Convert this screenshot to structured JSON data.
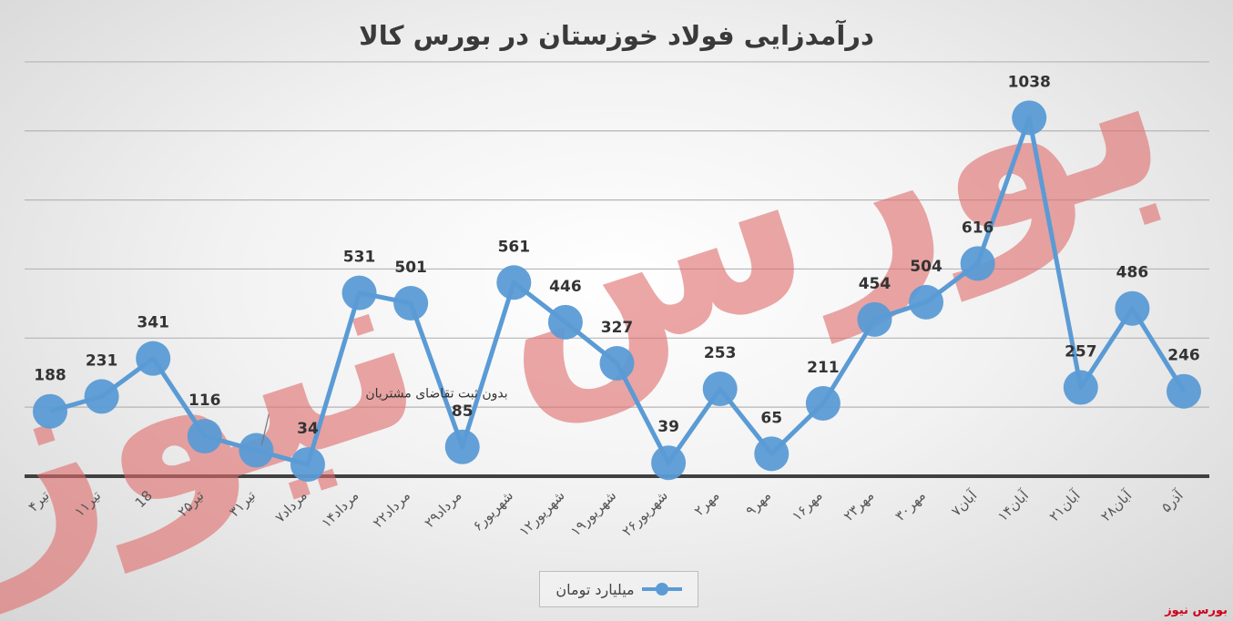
{
  "chart_data": {
    "type": "line",
    "title": "درآمدزایی فولاد خوزستان در بورس کالا",
    "categories": [
      "۴تیر",
      "۱۱تیر",
      "18",
      "۲۵تیر",
      "۳۱تیر",
      "۷مرداد",
      "۱۴مرداد",
      "۲۲مرداد",
      "۲۹مرداد",
      "۶شهریور",
      "۱۲شهریور",
      "۱۹شهریور",
      "۲۶شهریور",
      "۲مهر",
      "۹مهر",
      "۱۶مهر",
      "۲۳مهر",
      "۳۰مهر",
      "۷آبان",
      "۱۴آبان",
      "۲۱آبان",
      "۲۸آبان",
      "۵آذر"
    ],
    "series": [
      {
        "name": "میلیارد تومان",
        "color": "#5b9bd5",
        "values": [
          188,
          231,
          341,
          116,
          null,
          34,
          531,
          501,
          85,
          561,
          446,
          327,
          39,
          253,
          65,
          211,
          454,
          504,
          616,
          1038,
          257,
          486,
          246
        ]
      }
    ],
    "ylim": [
      0,
      1300
    ],
    "grid": true,
    "legend_position": "bottom",
    "annotations": [
      {
        "text": "بدون ثبت تقاضای مشتریان",
        "category": "۳۱تیر"
      }
    ]
  },
  "watermark": {
    "text": "بورس نیوز",
    "color": "#e06c6c"
  },
  "source_mark": "بورس نیوز"
}
